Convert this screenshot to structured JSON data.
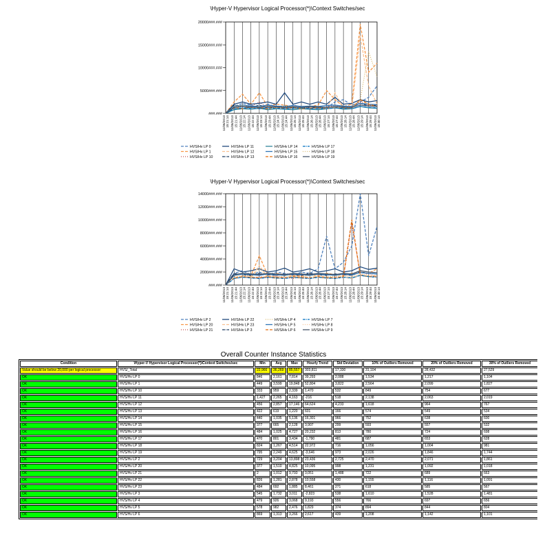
{
  "chart_data": [
    {
      "type": "line",
      "title": "\\Hyper-V Hypervisor Logical Processor(*)\\Context Switches/sec",
      "x": [
        "11/06/2013 15:21:14",
        "11/06/2013 15:21:44",
        "11/06/2013 15:22:14",
        "11/06/2013 15:22:44",
        "11/06/2013 15:23:14",
        "11/06/2013 15:23:44",
        "11/06/2013 15:24:14",
        "11/06/2013 15:24:44",
        "11/06/2013 15:25:14",
        "11/06/2013 15:25:44",
        "11/06/2013 15:26:14",
        "11/06/2013 15:26:44",
        "11/06/2013 15:27:14",
        "11/06/2013 15:27:44",
        "11/06/2013 15:28:14",
        "11/06/2013 15:28:44",
        "11/06/2013 15:29:14",
        "11/06/2013 15:29:44",
        "11/06/2013 15:30:14"
      ],
      "yticks": [
        "###.###",
        "5000###.###",
        "10000###.###",
        "15000###.###",
        "20000###.###"
      ],
      "ylim": [
        0,
        20000
      ],
      "grid": true,
      "legend": "bottom",
      "series": [
        {
          "name": "HVS/Hv LP 0",
          "color": "#4f81bd",
          "dash": "4,2",
          "values": [
            0,
            1500,
            2200,
            1800,
            1200,
            2000,
            1500,
            1200,
            1800,
            1400,
            1000,
            1500,
            1200,
            2500,
            3000,
            1800,
            2500,
            3500,
            6000
          ]
        },
        {
          "name": "HVS/Hv LP 1",
          "color": "#f79646",
          "dash": "4,2",
          "values": [
            0,
            2500,
            4200,
            2000,
            4500,
            1500,
            2000,
            1800,
            1500,
            1200,
            1500,
            1800,
            5000,
            3000,
            1500,
            2000,
            19500,
            9000,
            11000
          ]
        },
        {
          "name": "HVS/Hv LP 10",
          "color": "#c0504d",
          "dash": "1,2",
          "values": [
            0,
            1200,
            1800,
            1500,
            2500,
            1200,
            1600,
            1400,
            1200,
            1600,
            1200,
            1000,
            1400,
            1800,
            1200,
            1500,
            2500,
            1800,
            2000
          ]
        },
        {
          "name": "HVS/Hv LP 11",
          "color": "#1f497d",
          "dash": "",
          "values": [
            0,
            2000,
            2500,
            2000,
            2200,
            2500,
            2000,
            4500,
            2000,
            2500,
            2000,
            2500,
            2000,
            3500,
            2000,
            2200,
            3000,
            2500,
            2800
          ]
        },
        {
          "name": "HVS/Hv LP 12",
          "color": "#fac090",
          "dash": "4,2",
          "values": [
            0,
            1000,
            1500,
            1200,
            1000,
            1400,
            1200,
            1000,
            1600,
            1200,
            1000,
            1300,
            1100,
            4500,
            1200,
            1000,
            17000,
            6000,
            2000
          ]
        },
        {
          "name": "HVS/Hv LP 13",
          "color": "#17375e",
          "dash": "4,1,1,1",
          "values": [
            0,
            1800,
            1500,
            1200,
            1800,
            1200,
            1400,
            1600,
            1200,
            1000,
            1400,
            1200,
            1300,
            1500,
            1200,
            1400,
            2200,
            1600,
            1800
          ]
        },
        {
          "name": "HVS/Hv LP 14",
          "color": "#31859c",
          "dash": "",
          "values": [
            0,
            800,
            1000,
            900,
            1100,
            800,
            1000,
            900,
            800,
            1000,
            900,
            800,
            1000,
            1200,
            900,
            1000,
            1500,
            1200,
            1100
          ]
        },
        {
          "name": "HVS/Hv LP 15",
          "color": "#2e75b6",
          "dash": "",
          "values": [
            0,
            1500,
            1800,
            1600,
            1500,
            1800,
            1600,
            1500,
            1700,
            1500,
            1600,
            1500,
            1700,
            1800,
            1600,
            1500,
            2200,
            2000,
            1900
          ]
        },
        {
          "name": "HVS/Hv LP 16",
          "color": "#e46c0a",
          "dash": "4,2",
          "values": [
            0,
            1200,
            1000,
            1400,
            1200,
            1000,
            1300,
            1100,
            1200,
            1000,
            1100,
            1200,
            1000,
            1300,
            1100,
            1200,
            3000,
            2000,
            1500
          ]
        },
        {
          "name": "HVS/Hv LP 17",
          "color": "#0070c0",
          "dash": "4,1,1,1",
          "values": [
            0,
            1000,
            1200,
            1100,
            1000,
            1200,
            1100,
            1000,
            1100,
            1200,
            1000,
            1100,
            1000,
            1200,
            1100,
            1000,
            1500,
            1300,
            1200
          ]
        },
        {
          "name": "HVS/Hv LP 18",
          "color": "#d9b76a",
          "dash": "1,2",
          "values": [
            0,
            1500,
            1800,
            1200,
            1500,
            1400,
            1200,
            1600,
            1300,
            1200,
            1500,
            1300,
            1200,
            1400,
            1300,
            1200,
            3000,
            13500,
            8000
          ]
        },
        {
          "name": "HVS/Hv LP 19",
          "color": "#44546a",
          "dash": "",
          "values": [
            0,
            1300,
            1500,
            1400,
            1300,
            1500,
            1400,
            1300,
            1400,
            1300,
            1500,
            1400,
            1300,
            1500,
            1400,
            1300,
            1800,
            1600,
            1500
          ]
        }
      ]
    },
    {
      "type": "line",
      "title": "\\Hyper-V Hypervisor Logical Processor(*)\\Context Switches/sec",
      "x": [
        "11/06/2013 15:21:14",
        "11/06/2013 15:21:44",
        "11/06/2013 15:22:14",
        "11/06/2013 15:22:44",
        "11/06/2013 15:23:14",
        "11/06/2013 15:23:44",
        "11/06/2013 15:24:14",
        "11/06/2013 15:24:44",
        "11/06/2013 15:25:14",
        "11/06/2013 15:25:44",
        "11/06/2013 15:26:14",
        "11/06/2013 15:26:44",
        "11/06/2013 15:27:14",
        "11/06/2013 15:27:44",
        "11/06/2013 15:28:14",
        "11/06/2013 15:28:44",
        "11/06/2013 15:29:14",
        "11/06/2013 15:29:44",
        "11/06/2013 15:30:14"
      ],
      "yticks": [
        "###.###",
        "2000###.###",
        "4000###.###",
        "6000###.###",
        "8000###.###",
        "10000###.###",
        "12000###.###",
        "14000###.###"
      ],
      "ylim": [
        0,
        14000
      ],
      "grid": true,
      "legend": "bottom",
      "series": [
        {
          "name": "HVS/Hv LP 2",
          "color": "#4f81bd",
          "dash": "4,2",
          "values": [
            0,
            1800,
            2200,
            1600,
            2000,
            1500,
            2000,
            1800,
            1500,
            2000,
            1800,
            2500,
            7500,
            2500,
            3500,
            6000,
            14000,
            4500,
            9000
          ]
        },
        {
          "name": "HVS/Hv LP 20",
          "color": "#f79646",
          "dash": "4,2",
          "values": [
            0,
            1500,
            1800,
            1400,
            4500,
            1500,
            1800,
            1600,
            1500,
            1400,
            1600,
            1500,
            1800,
            1600,
            1500,
            1800,
            2000,
            1800,
            2500
          ]
        },
        {
          "name": "HVS/Hv LP 21",
          "color": "#c0504d",
          "dash": "1,2",
          "values": [
            0,
            1200,
            1500,
            1000,
            1300,
            1100,
            1400,
            1200,
            1000,
            1300,
            1100,
            1200,
            1000,
            1300,
            1100,
            9500,
            1500,
            1800,
            1200
          ]
        },
        {
          "name": "HVS/Hv LP 22",
          "color": "#1f497d",
          "dash": "",
          "values": [
            0,
            2500,
            2000,
            2200,
            2500,
            2000,
            2200,
            2600,
            2000,
            2200,
            2500,
            2000,
            2200,
            2500,
            2000,
            2200,
            2800,
            2400,
            2600
          ]
        },
        {
          "name": "HVS/Hv LP 23",
          "color": "#fac090",
          "dash": "4,2",
          "values": [
            0,
            1000,
            1200,
            1100,
            3000,
            1200,
            1000,
            1100,
            1200,
            1000,
            1100,
            1200,
            1000,
            1100,
            1200,
            1000,
            1500,
            1300,
            1200
          ]
        },
        {
          "name": "HVS/Hv LP 3",
          "color": "#17375e",
          "dash": "4,1,1,1",
          "values": [
            0,
            1800,
            1600,
            1500,
            1800,
            1600,
            1500,
            1700,
            1600,
            1500,
            1800,
            1600,
            1500,
            1700,
            1600,
            1500,
            2000,
            1800,
            1700
          ]
        },
        {
          "name": "HVS/Hv LP 4",
          "color": "#d9b76a",
          "dash": "1,2",
          "values": [
            0,
            1300,
            1500,
            1200,
            2500,
            1300,
            1200,
            1400,
            1300,
            1200,
            1500,
            1300,
            1200,
            1400,
            1300,
            1200,
            1600,
            1400,
            1300
          ]
        },
        {
          "name": "HVS/Hv LP 5",
          "color": "#2e75b6",
          "dash": "",
          "values": [
            0,
            1500,
            1700,
            1600,
            1500,
            1700,
            1600,
            1500,
            1700,
            1600,
            1500,
            1700,
            1600,
            1500,
            1700,
            1600,
            1900,
            1800,
            1700
          ]
        },
        {
          "name": "HVS/Hv LP 6",
          "color": "#e46c0a",
          "dash": "4,2",
          "values": [
            0,
            1100,
            1300,
            1200,
            1100,
            1300,
            1200,
            1100,
            1300,
            1200,
            1100,
            1300,
            1200,
            1100,
            1300,
            10000,
            1500,
            1300,
            1400
          ]
        },
        {
          "name": "HVS/Hv LP 7",
          "color": "#0070c0",
          "dash": "4,1,1,1",
          "values": [
            0,
            1000,
            1200,
            1100,
            1000,
            1200,
            1100,
            1000,
            1200,
            1100,
            1000,
            1200,
            1100,
            1000,
            1200,
            1100,
            1500,
            1300,
            1200
          ]
        },
        {
          "name": "HVS/Hv LP 8",
          "color": "#fac090",
          "dash": "1,2",
          "values": [
            0,
            1200,
            1400,
            1300,
            1200,
            1400,
            1300,
            1200,
            1400,
            1300,
            1200,
            1400,
            1300,
            1200,
            1400,
            1300,
            1700,
            1500,
            1400
          ]
        },
        {
          "name": "HVS/Hv LP 9",
          "color": "#44546a",
          "dash": "",
          "values": [
            0,
            1600,
            1800,
            1700,
            1600,
            1800,
            1700,
            1600,
            1800,
            1700,
            1600,
            1800,
            1700,
            1600,
            1800,
            1700,
            2200,
            2000,
            1900
          ]
        }
      ]
    }
  ],
  "stats": {
    "title": "Overall Counter Instance Statistics",
    "headers": [
      "Condition",
      "\\Hyper-V Hypervisor Logical Processor(*)\\Context Switches/sec",
      "Min",
      "Avg",
      "Max",
      "Hourly Trend",
      "Std Deviation",
      "10% of Outliers Removed",
      "20% of Outliers Removed",
      "30% of Outliers Removed"
    ],
    "rows": [
      {
        "cond": "Value should be below 20,000 per logical processor",
        "warn": true,
        "inst": "HVS/_Total",
        "min": "22,966",
        "avg": "36,269",
        "max": "85,557",
        "trend": "303,811",
        "std": "17,330",
        "o10": "31,104",
        "o20": "28,432",
        "o30": "27,529",
        "hl": true
      },
      {
        "cond": "OK",
        "inst": "HVS/Hv LP 0",
        "min": "846",
        "avg": "2,161",
        "max": "7,814",
        "trend": "39,293",
        "std": "2,088",
        "o10": "1,534",
        "o20": "1,217",
        "o30": "1,104"
      },
      {
        "cond": "OK",
        "inst": "HVS/Hv LP 1",
        "min": "449",
        "avg": "3,599",
        "max": "19,848",
        "trend": "52,804",
        "std": "3,822",
        "o10": "2,564",
        "o20": "2,099",
        "o30": "1,827"
      },
      {
        "cond": "OK",
        "inst": "HVS/Hv LP 10",
        "min": "333",
        "avg": "959",
        "max": "2,339",
        "trend": "1,470",
        "std": "532",
        "o10": "849",
        "o20": "754",
        "o30": "677"
      },
      {
        "cond": "OK",
        "inst": "HVS/Hv LP 11",
        "min": "1,427",
        "avg": "2,265",
        "max": "4,163",
        "trend": "-216",
        "std": "518",
        "o10": "2,138",
        "o20": "2,063",
        "o30": "2,019"
      },
      {
        "cond": "OK",
        "inst": "HVS/Hv LP 12",
        "min": "456",
        "avg": "2,857",
        "max": "17,146",
        "trend": "64,624",
        "std": "4,233",
        "o10": "1,618",
        "o20": "964",
        "o30": "767"
      },
      {
        "cond": "OK",
        "inst": "HVS/Hv LP 13",
        "min": "422",
        "avg": "619",
        "max": "1,220",
        "trend": "601",
        "std": "166",
        "o10": "574",
        "o20": "549",
        "o30": "534"
      },
      {
        "cond": "OK",
        "inst": "HVS/Hv LP 14",
        "min": "440",
        "avg": "1,035",
        "max": "5,136",
        "trend": "16,301",
        "std": "966",
        "o10": "752",
        "o20": "638",
        "o30": "600"
      },
      {
        "cond": "OK",
        "inst": "HVS/Hv LP 15",
        "min": "377",
        "avg": "665",
        "max": "2,128",
        "trend": "3,907",
        "std": "299",
        "o10": "593",
        "o20": "557",
        "o30": "532"
      },
      {
        "cond": "OK",
        "inst": "HVS/Hv LP 16",
        "min": "484",
        "avg": "1,025",
        "max": "4,727",
        "trend": "20,232",
        "std": "813",
        "o10": "780",
        "o20": "724",
        "o30": "698"
      },
      {
        "cond": "OK",
        "inst": "HVS/Hv LP 17",
        "min": "470",
        "avg": "801",
        "max": "3,434",
        "trend": "-1,790",
        "std": "481",
        "o10": "687",
        "o20": "653",
        "o30": "628"
      },
      {
        "cond": "OK",
        "inst": "HVS/Hv LP 18",
        "min": "824",
        "avg": "1,267",
        "max": "4,514",
        "trend": "22,972",
        "std": "716",
        "o10": "1,056",
        "o20": "1,004",
        "o30": "981"
      },
      {
        "cond": "OK",
        "inst": "HVS/Hv LP 19",
        "min": "795",
        "avg": "2,249",
        "max": "4,625",
        "trend": "-3,646",
        "std": "973",
        "o10": "2,026",
        "o20": "1,846",
        "o30": "1,744"
      },
      {
        "cond": "OK",
        "inst": "HVS/Hv LP 2",
        "min": "729",
        "avg": "3,204",
        "max": "13,898",
        "trend": "23,436",
        "std": "2,725",
        "o10": "2,470",
        "o20": "2,071",
        "o30": "1,861"
      },
      {
        "cond": "OK",
        "inst": "HVS/Hv LP 20",
        "min": "377",
        "avg": "1,510",
        "max": "4,825",
        "trend": "10,095",
        "std": "998",
        "o10": "1,231",
        "o20": "1,092",
        "o30": "1,018"
      },
      {
        "cond": "OK",
        "inst": "HVS/Hv LP 21",
        "min": "2",
        "avg": "1,012",
        "max": "9,793",
        "trend": "3,051",
        "std": "1,488",
        "o10": "722",
        "o20": "689",
        "o30": "663"
      },
      {
        "cond": "OK",
        "inst": "HVS/Hv LP 22",
        "min": "826",
        "avg": "1,281",
        "max": "2,878",
        "trend": "10,558",
        "std": "430",
        "o10": "1,155",
        "o20": "1,116",
        "o30": "1,091"
      },
      {
        "cond": "OK",
        "inst": "HVS/Hv LP 23",
        "min": "484",
        "avg": "692",
        "max": "1,885",
        "trend": "8,461",
        "std": "271",
        "o10": "618",
        "o20": "585",
        "o30": "567"
      },
      {
        "cond": "OK",
        "inst": "HVS/Hv LP 3",
        "min": "545",
        "avg": "1,732",
        "max": "3,011",
        "trend": "-2,823",
        "std": "538",
        "o10": "1,610",
        "o20": "1,528",
        "o30": "1,481"
      },
      {
        "cond": "OK",
        "inst": "HVS/Hv LP 4",
        "min": "479",
        "avg": "926",
        "max": "3,068",
        "trend": "9,193",
        "std": "556",
        "o10": "766",
        "o20": "697",
        "o30": "656"
      },
      {
        "cond": "OK",
        "inst": "HVS/Hv LP 5",
        "min": "578",
        "avg": "982",
        "max": "2,476",
        "trend": "1,829",
        "std": "374",
        "o10": "894",
        "o20": "844",
        "o30": "804"
      },
      {
        "cond": "OK",
        "inst": "HVS/Hv LP 6",
        "min": "869",
        "avg": "1,313",
        "max": "3,266",
        "trend": "2,617",
        "std": "439",
        "o10": "1,208",
        "o20": "1,142",
        "o30": "1,101"
      }
    ]
  }
}
